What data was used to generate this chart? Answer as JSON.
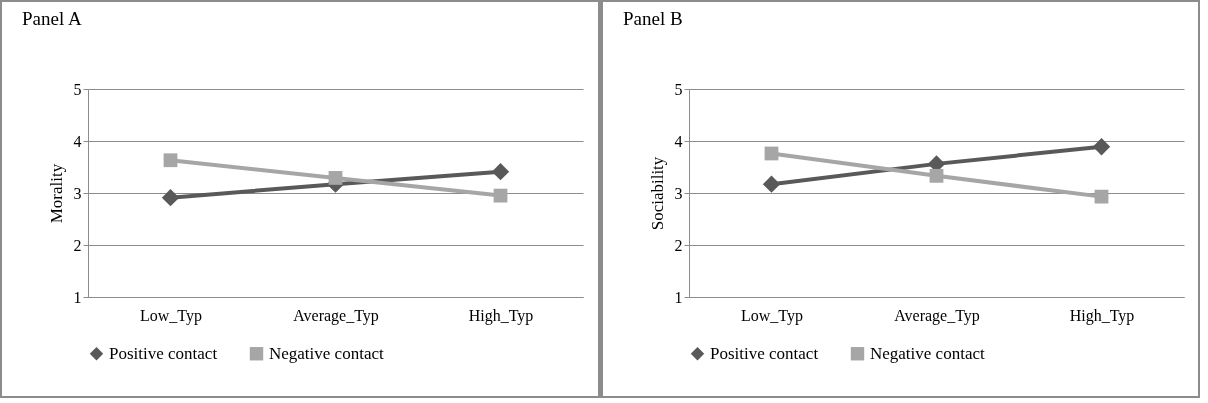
{
  "chart_data": [
    {
      "type": "line",
      "title": "Panel A",
      "ylabel": "Morality",
      "categories": [
        "Low_Typ",
        "Average_Typ",
        "High_Typ"
      ],
      "ylim": [
        1,
        5
      ],
      "yticks": [
        1,
        2,
        3,
        4,
        5
      ],
      "grid": "y",
      "legend": "bottom",
      "series": [
        {
          "name": "Positive contact",
          "color": "#595959",
          "marker": "diamond",
          "values": [
            2.91,
            3.17,
            3.41
          ]
        },
        {
          "name": "Negative contact",
          "color": "#a6a6a6",
          "marker": "square",
          "values": [
            3.63,
            3.29,
            2.95
          ]
        }
      ]
    },
    {
      "type": "line",
      "title": "Panel B",
      "ylabel": "Sociability",
      "categories": [
        "Low_Typ",
        "Average_Typ",
        "High_Typ"
      ],
      "ylim": [
        1,
        5
      ],
      "yticks": [
        1,
        2,
        3,
        4,
        5
      ],
      "grid": "y",
      "legend": "bottom",
      "series": [
        {
          "name": "Positive contact",
          "color": "#595959",
          "marker": "diamond",
          "values": [
            3.17,
            3.56,
            3.89
          ]
        },
        {
          "name": "Negative contact",
          "color": "#a6a6a6",
          "marker": "square",
          "values": [
            3.76,
            3.33,
            2.93
          ]
        }
      ]
    }
  ]
}
